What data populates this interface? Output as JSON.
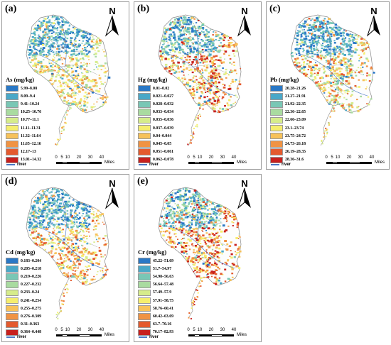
{
  "panels": [
    {
      "id": "a",
      "label": "(a)",
      "title": "As (mg/kg)",
      "legend": [
        "5.99–8.08",
        "8.09–9.4",
        "9.41–10.24",
        "10.25–10.76",
        "10.77–11.1",
        "11.11–11.31",
        "11.32–11.64",
        "11.65–12.16",
        "12.17–13",
        "13.01–14.32"
      ],
      "colors": [
        "#2a78c6",
        "#4aa8c8",
        "#79c7b5",
        "#a9dba0",
        "#d6ec8b",
        "#f5ee6e",
        "#f7c25a",
        "#f09343",
        "#e45a2e",
        "#c8201d"
      ]
    },
    {
      "id": "b",
      "label": "(b)",
      "title": "Hg (mg/kg)",
      "legend": [
        "0.01–0.02",
        "0.021–0.027",
        "0.028–0.032",
        "0.033–0.034",
        "0.035–0.036",
        "0.037–0.039",
        "0.04–0.044",
        "0.045–0.05",
        "0.051–0.061",
        "0.062–0.078"
      ],
      "colors": [
        "#2a78c6",
        "#4aa8c8",
        "#79c7b5",
        "#a9dba0",
        "#d6ec8b",
        "#f5ee6e",
        "#f7c25a",
        "#f09343",
        "#e45a2e",
        "#c8201d"
      ]
    },
    {
      "id": "c",
      "label": "(c)",
      "title": "Pb (mg/kg)",
      "legend": [
        "20.28–21.26",
        "21.27–21.91",
        "21.92–22.35",
        "22.36–22.65",
        "22.66–23.09",
        "23.1–23.74",
        "23.75–24.72",
        "24.73–26.18",
        "26.19–28.35",
        "28.36–31.6"
      ],
      "colors": [
        "#2a78c6",
        "#4aa8c8",
        "#79c7b5",
        "#a9dba0",
        "#d6ec8b",
        "#f5ee6e",
        "#f7c25a",
        "#f09343",
        "#e45a2e",
        "#c8201d"
      ]
    },
    {
      "id": "d",
      "label": "(d)",
      "title": "Cd (mg/kg)",
      "legend": [
        "0.183–0.204",
        "0.205–0.218",
        "0.219–0.226",
        "0.227–0.232",
        "0.233–0.24",
        "0.241–0.254",
        "0.255–0.275",
        "0.276–0.309",
        "0.31–0.363",
        "0.364–0.448"
      ],
      "colors": [
        "#2a78c6",
        "#4aa8c8",
        "#79c7b5",
        "#a9dba0",
        "#d6ec8b",
        "#f5ee6e",
        "#f7c25a",
        "#f09343",
        "#e45a2e",
        "#c8201d"
      ]
    },
    {
      "id": "e",
      "label": "(e)",
      "title": "Cr (mg/kg)",
      "legend": [
        "45.22–51.69",
        "51.7–54.97",
        "54.98–56.63",
        "56.64–57.48",
        "57.49–57.9",
        "57.91–58.75",
        "58.76–60.41",
        "60.42–63.69",
        "63.7–70.16",
        "70.17–82.93"
      ],
      "colors": [
        "#2a78c6",
        "#4aa8c8",
        "#79c7b5",
        "#a9dba0",
        "#d6ec8b",
        "#f5ee6e",
        "#f7c25a",
        "#f09343",
        "#e45a2e",
        "#c8201d"
      ]
    }
  ],
  "north_label": "N",
  "scale": {
    "ticks": [
      "0",
      "5",
      "10",
      "20",
      "30",
      "40"
    ],
    "unit": "Miles"
  },
  "river_label": "river"
}
